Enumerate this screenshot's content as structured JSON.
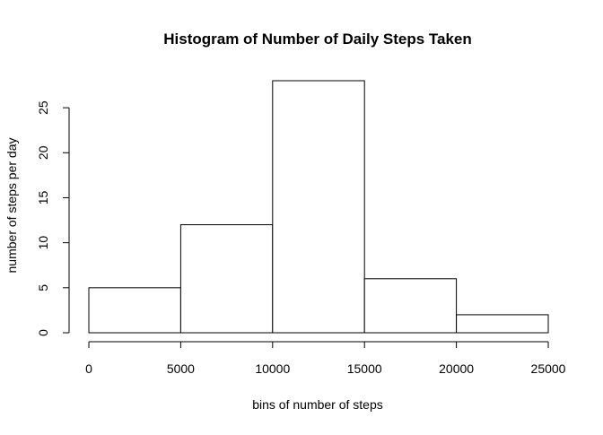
{
  "chart_data": {
    "type": "bar",
    "title": "Histogram of Number of Daily Steps Taken",
    "xlabel": "bins of number of steps",
    "ylabel": "number of steps per day",
    "bins": [
      {
        "start": 0,
        "end": 5000,
        "count": 5
      },
      {
        "start": 5000,
        "end": 10000,
        "count": 12
      },
      {
        "start": 10000,
        "end": 15000,
        "count": 28
      },
      {
        "start": 15000,
        "end": 20000,
        "count": 6
      },
      {
        "start": 20000,
        "end": 25000,
        "count": 2
      }
    ],
    "xlim": [
      0,
      25000
    ],
    "ylim": [
      0,
      28
    ],
    "xticks": [
      0,
      5000,
      10000,
      15000,
      20000,
      25000
    ],
    "yticks": [
      0,
      5,
      10,
      15,
      20,
      25
    ],
    "grid": false,
    "colors": {
      "bar_fill": "#ffffff",
      "bar_stroke": "#000000"
    }
  }
}
